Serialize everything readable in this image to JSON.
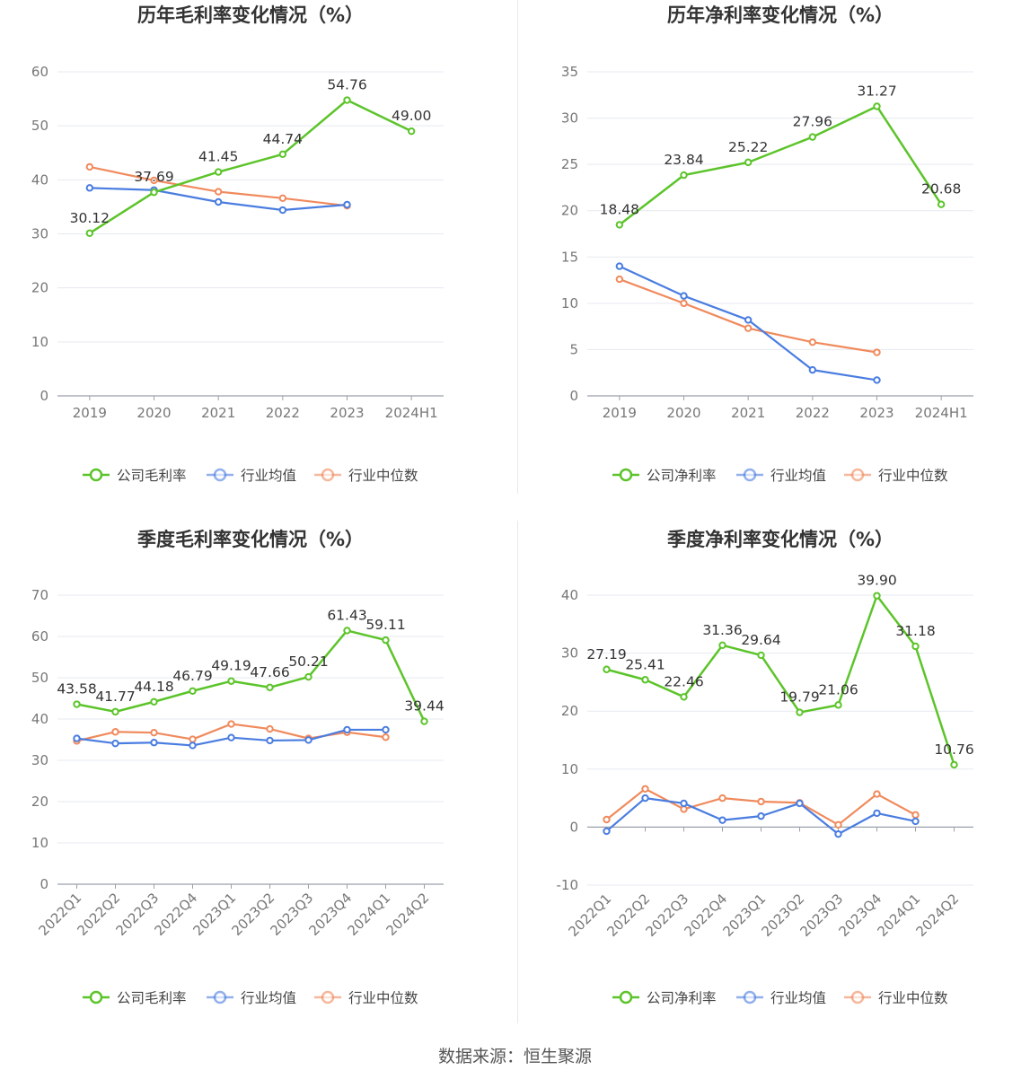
{
  "colors": {
    "company": "#5cc42a",
    "industry_avg": "#4a7de0",
    "industry_median": "#f08a5d",
    "grid": "#e6e9f0",
    "axis": "#9aa0ab"
  },
  "source_text": "数据来源：恒生聚源",
  "chart_data": [
    {
      "type": "line",
      "title": "历年毛利率变化情况（%）",
      "categories": [
        "2019",
        "2020",
        "2021",
        "2022",
        "2023",
        "2024H1"
      ],
      "ylim": [
        0,
        60
      ],
      "yticks": [
        0,
        10,
        20,
        30,
        40,
        50,
        60
      ],
      "x_rotated": false,
      "series": [
        {
          "name": "公司毛利率",
          "values": [
            30.12,
            37.69,
            41.45,
            44.74,
            54.76,
            49.0
          ],
          "labels": [
            "30.12",
            "37.69",
            "41.45",
            "44.74",
            "54.76",
            "49.00"
          ]
        },
        {
          "name": "行业均值",
          "values": [
            38.5,
            38.1,
            35.9,
            34.4,
            35.4,
            null
          ]
        },
        {
          "name": "行业中位数",
          "values": [
            42.4,
            39.9,
            37.8,
            36.6,
            35.2,
            null
          ]
        }
      ]
    },
    {
      "type": "line",
      "title": "历年净利率变化情况（%）",
      "categories": [
        "2019",
        "2020",
        "2021",
        "2022",
        "2023",
        "2024H1"
      ],
      "ylim": [
        0,
        35
      ],
      "yticks": [
        0,
        5,
        10,
        15,
        20,
        25,
        30,
        35
      ],
      "x_rotated": false,
      "series": [
        {
          "name": "公司净利率",
          "values": [
            18.48,
            23.84,
            25.22,
            27.96,
            31.27,
            20.68
          ],
          "labels": [
            "18.48",
            "23.84",
            "25.22",
            "27.96",
            "31.27",
            "20.68"
          ]
        },
        {
          "name": "行业均值",
          "values": [
            14.0,
            10.8,
            8.2,
            2.8,
            1.7,
            null
          ]
        },
        {
          "name": "行业中位数",
          "values": [
            12.6,
            10.0,
            7.3,
            5.8,
            4.7,
            null
          ]
        }
      ]
    },
    {
      "type": "line",
      "title": "季度毛利率变化情况（%）",
      "categories": [
        "2022Q1",
        "2022Q2",
        "2022Q3",
        "2022Q4",
        "2023Q1",
        "2023Q2",
        "2023Q3",
        "2023Q4",
        "2024Q1",
        "2024Q2"
      ],
      "ylim": [
        0,
        70
      ],
      "yticks": [
        0,
        10,
        20,
        30,
        40,
        50,
        60,
        70
      ],
      "x_rotated": true,
      "series": [
        {
          "name": "公司毛利率",
          "values": [
            43.58,
            41.77,
            44.18,
            46.79,
            49.19,
            47.66,
            50.21,
            61.43,
            59.11,
            39.44
          ],
          "labels": [
            "43.58",
            "41.77",
            "44.18",
            "46.79",
            "49.19",
            "47.66",
            "50.21",
            "61.43",
            "59.11",
            "39.44"
          ]
        },
        {
          "name": "行业均值",
          "values": [
            35.3,
            34.1,
            34.3,
            33.6,
            35.5,
            34.8,
            34.9,
            37.4,
            37.4,
            null
          ]
        },
        {
          "name": "行业中位数",
          "values": [
            34.7,
            36.9,
            36.7,
            35.1,
            38.8,
            37.6,
            35.3,
            36.8,
            35.6,
            null
          ]
        }
      ]
    },
    {
      "type": "line",
      "title": "季度净利率变化情况（%）",
      "categories": [
        "2022Q1",
        "2022Q2",
        "2022Q3",
        "2022Q4",
        "2023Q1",
        "2023Q2",
        "2023Q3",
        "2023Q4",
        "2024Q1",
        "2024Q2"
      ],
      "ylim": [
        -10,
        40
      ],
      "yticks": [
        -10,
        0,
        10,
        20,
        30,
        40
      ],
      "x_rotated": true,
      "series": [
        {
          "name": "公司净利率",
          "values": [
            27.19,
            25.41,
            22.46,
            31.36,
            29.64,
            19.79,
            21.06,
            39.9,
            31.18,
            10.76
          ],
          "labels": [
            "27.19",
            "25.41",
            "22.46",
            "31.36",
            "29.64",
            "19.79",
            "21.06",
            "39.90",
            "31.18",
            "10.76"
          ]
        },
        {
          "name": "行业均值",
          "values": [
            -0.7,
            5.0,
            4.1,
            1.2,
            1.9,
            4.1,
            -1.2,
            2.4,
            1.0,
            null
          ]
        },
        {
          "name": "行业中位数",
          "values": [
            1.3,
            6.6,
            3.1,
            5.0,
            4.4,
            4.2,
            0.4,
            5.7,
            2.1,
            null
          ]
        }
      ]
    }
  ]
}
